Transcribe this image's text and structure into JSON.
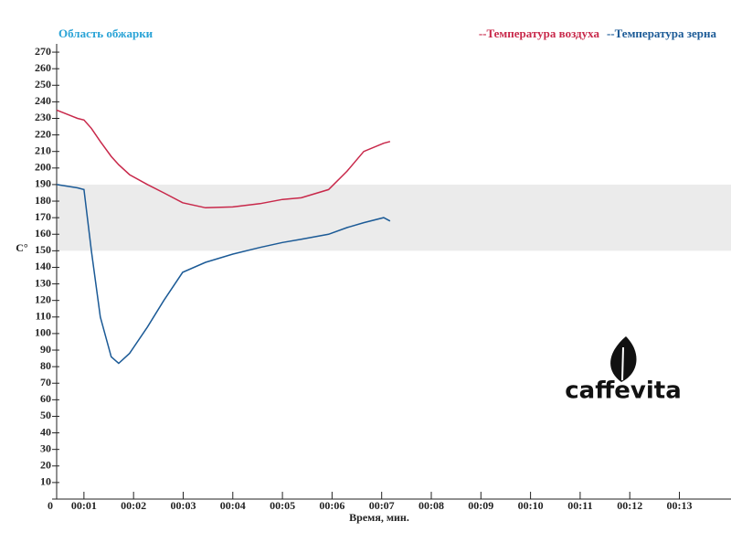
{
  "chart_data": {
    "type": "line",
    "title": "Область обжарки",
    "zone": [
      150,
      190
    ],
    "zone_color": "#ebebeb",
    "x_label": "Время, мин.",
    "y_label": "C°",
    "logo": "caffevita",
    "x": [
      0.45,
      0.87,
      1.0,
      1.15,
      1.33,
      1.55,
      1.7,
      1.92,
      2.28,
      2.61,
      2.99,
      3.45,
      4.0,
      4.55,
      5.0,
      5.38,
      5.93,
      6.3,
      6.64,
      7.04,
      7.17
    ],
    "series": [
      {
        "name": "--Температура воздуха",
        "color": "#c8284a",
        "values": [
          235,
          230,
          229,
          224,
          216,
          207,
          202,
          196,
          190,
          185,
          179,
          176,
          176.5,
          178.5,
          181,
          182,
          187,
          198,
          210,
          215,
          216
        ]
      },
      {
        "name": "--Температура зерна",
        "color": "#1b5a96",
        "values": [
          190,
          188,
          187,
          150,
          110,
          86,
          82,
          88,
          104,
          120,
          137,
          143,
          148,
          152,
          155,
          157,
          160,
          164,
          167,
          170,
          168
        ]
      }
    ],
    "xlim": [
      0.45,
      14.04
    ],
    "ylim": [
      0,
      275
    ],
    "xticks": [
      {
        "value": 1,
        "label": "00:01"
      },
      {
        "value": 2,
        "label": "00:02"
      },
      {
        "value": 3,
        "label": "00:03"
      },
      {
        "value": 4,
        "label": "00:04"
      },
      {
        "value": 5,
        "label": "00:05"
      },
      {
        "value": 6,
        "label": "00:06"
      },
      {
        "value": 7,
        "label": "00:07"
      },
      {
        "value": 8,
        "label": "00:08"
      },
      {
        "value": 9,
        "label": "00:09"
      },
      {
        "value": 10,
        "label": "00:10"
      },
      {
        "value": 11,
        "label": "00:11"
      },
      {
        "value": 12,
        "label": "00:12"
      },
      {
        "value": 13,
        "label": "00:13"
      }
    ],
    "yticks": [
      0,
      10,
      20,
      30,
      40,
      50,
      60,
      70,
      80,
      90,
      100,
      110,
      120,
      130,
      140,
      150,
      160,
      170,
      180,
      190,
      200,
      210,
      220,
      230,
      240,
      250,
      260,
      270
    ],
    "legend": "top-right"
  }
}
